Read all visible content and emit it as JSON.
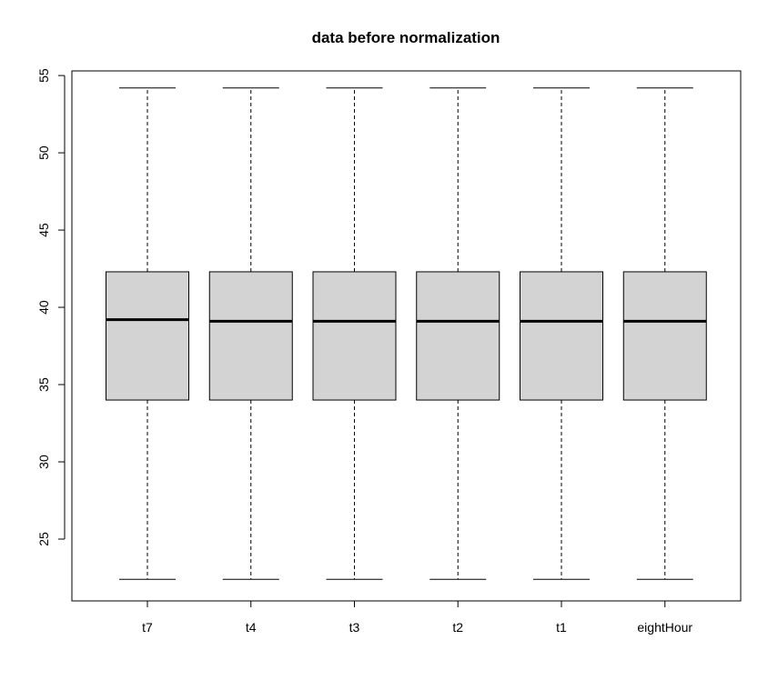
{
  "chart_data": {
    "type": "boxplot",
    "title": "data before normalization",
    "xlabel": "",
    "ylabel": "",
    "ylim": [
      21.0,
      55.3
    ],
    "yticks": [
      25,
      30,
      35,
      40,
      45,
      50,
      55
    ],
    "grid": false,
    "categories": [
      "t7",
      "t4",
      "t3",
      "t2",
      "t1",
      "eightHour"
    ],
    "series": [
      {
        "category": "t7",
        "whisker_low": 22.4,
        "q1": 34.0,
        "median": 39.2,
        "q3": 42.3,
        "whisker_high": 54.2
      },
      {
        "category": "t4",
        "whisker_low": 22.4,
        "q1": 34.0,
        "median": 39.1,
        "q3": 42.3,
        "whisker_high": 54.2
      },
      {
        "category": "t3",
        "whisker_low": 22.4,
        "q1": 34.0,
        "median": 39.1,
        "q3": 42.3,
        "whisker_high": 54.2
      },
      {
        "category": "t2",
        "whisker_low": 22.4,
        "q1": 34.0,
        "median": 39.1,
        "q3": 42.3,
        "whisker_high": 54.2
      },
      {
        "category": "t1",
        "whisker_low": 22.4,
        "q1": 34.0,
        "median": 39.1,
        "q3": 42.3,
        "whisker_high": 54.2
      },
      {
        "category": "eightHour",
        "whisker_low": 22.4,
        "q1": 34.0,
        "median": 39.1,
        "q3": 42.3,
        "whisker_high": 54.2
      }
    ],
    "colors": {
      "box_fill": "#d3d3d3",
      "stroke": "#000000"
    }
  }
}
